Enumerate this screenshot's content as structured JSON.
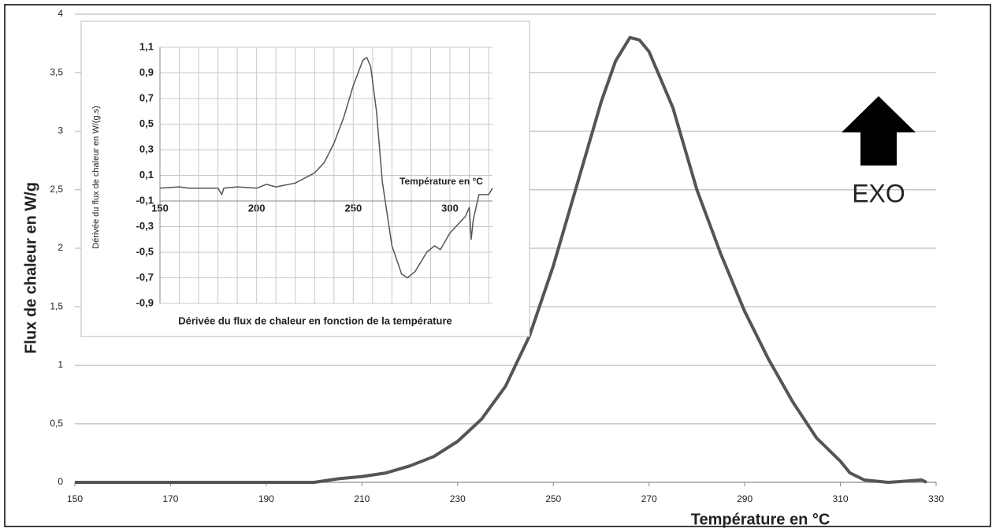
{
  "chart_data": [
    {
      "type": "line",
      "x_label": "Température en °C",
      "y_label": "Flux de chaleur en W/g",
      "annotation": "EXO",
      "x": [
        150,
        200,
        205,
        210,
        215,
        220,
        225,
        230,
        235,
        240,
        245,
        250,
        255,
        260,
        263,
        266,
        268,
        270,
        275,
        280,
        285,
        290,
        295,
        300,
        305,
        310,
        312,
        315,
        320,
        327,
        328
      ],
      "values": [
        0,
        0,
        0.03,
        0.05,
        0.08,
        0.14,
        0.22,
        0.35,
        0.54,
        0.82,
        1.25,
        1.85,
        2.55,
        3.25,
        3.6,
        3.8,
        3.78,
        3.68,
        3.2,
        2.5,
        1.95,
        1.46,
        1.05,
        0.69,
        0.38,
        0.18,
        0.08,
        0.02,
        0,
        0.02,
        0
      ],
      "color": "#555555",
      "xlim": [
        150,
        330
      ],
      "xticks": [
        150,
        170,
        190,
        210,
        230,
        250,
        270,
        290,
        310,
        330
      ],
      "ylim": [
        0,
        4
      ],
      "yticks": [
        0,
        {
          "value": 0.5,
          "label": "0,5"
        },
        1,
        {
          "value": 1.5,
          "label": "1,5"
        },
        2,
        {
          "value": 2.5,
          "label": "2,5"
        },
        3,
        {
          "value": 3.5,
          "label": "3,5"
        },
        4
      ],
      "grid": true
    },
    {
      "type": "line",
      "title": "Dérivée du flux de chaleur en fonction de la température",
      "x_label": "Température en °C",
      "y_label": "Dérivée du flux de chaleur en W/(g.s)",
      "x": [
        150,
        160,
        165,
        180,
        182,
        183,
        190,
        200,
        205,
        210,
        220,
        230,
        235,
        240,
        245,
        250,
        255,
        257,
        259,
        262,
        265,
        270,
        275,
        278,
        282,
        288,
        292,
        295,
        300,
        308,
        310,
        311,
        312,
        315,
        320,
        322
      ],
      "values": [
        0,
        0.01,
        0,
        0,
        -0.05,
        0,
        0.01,
        0,
        0.03,
        0.01,
        0.04,
        0.12,
        0.2,
        0.35,
        0.55,
        0.8,
        1.0,
        1.02,
        0.95,
        0.6,
        0.05,
        -0.45,
        -0.67,
        -0.7,
        -0.65,
        -0.5,
        -0.45,
        -0.48,
        -0.35,
        -0.22,
        -0.15,
        -0.4,
        -0.25,
        -0.05,
        -0.05,
        0
      ],
      "color": "#555555",
      "xlim": [
        150,
        322
      ],
      "xticks": [
        150,
        200,
        250,
        300
      ],
      "ylim": [
        -0.9,
        1.1
      ],
      "yticks": [
        {
          "value": 1.1,
          "label": "1,1"
        },
        {
          "value": 0.9,
          "label": "0,9"
        },
        {
          "value": 0.7,
          "label": "0,7"
        },
        {
          "value": 0.5,
          "label": "0,5"
        },
        {
          "value": 0.3,
          "label": "0,3"
        },
        {
          "value": 0.1,
          "label": "0,1"
        },
        {
          "value": -0.1,
          "label": "-0,1"
        },
        {
          "value": -0.3,
          "label": "-0,3"
        },
        {
          "value": -0.5,
          "label": "-0,5"
        },
        {
          "value": -0.7,
          "label": "-0,7"
        },
        {
          "value": -0.9,
          "label": "-0,9"
        }
      ],
      "x_axis_crossing": -0.1,
      "grid": true
    }
  ]
}
